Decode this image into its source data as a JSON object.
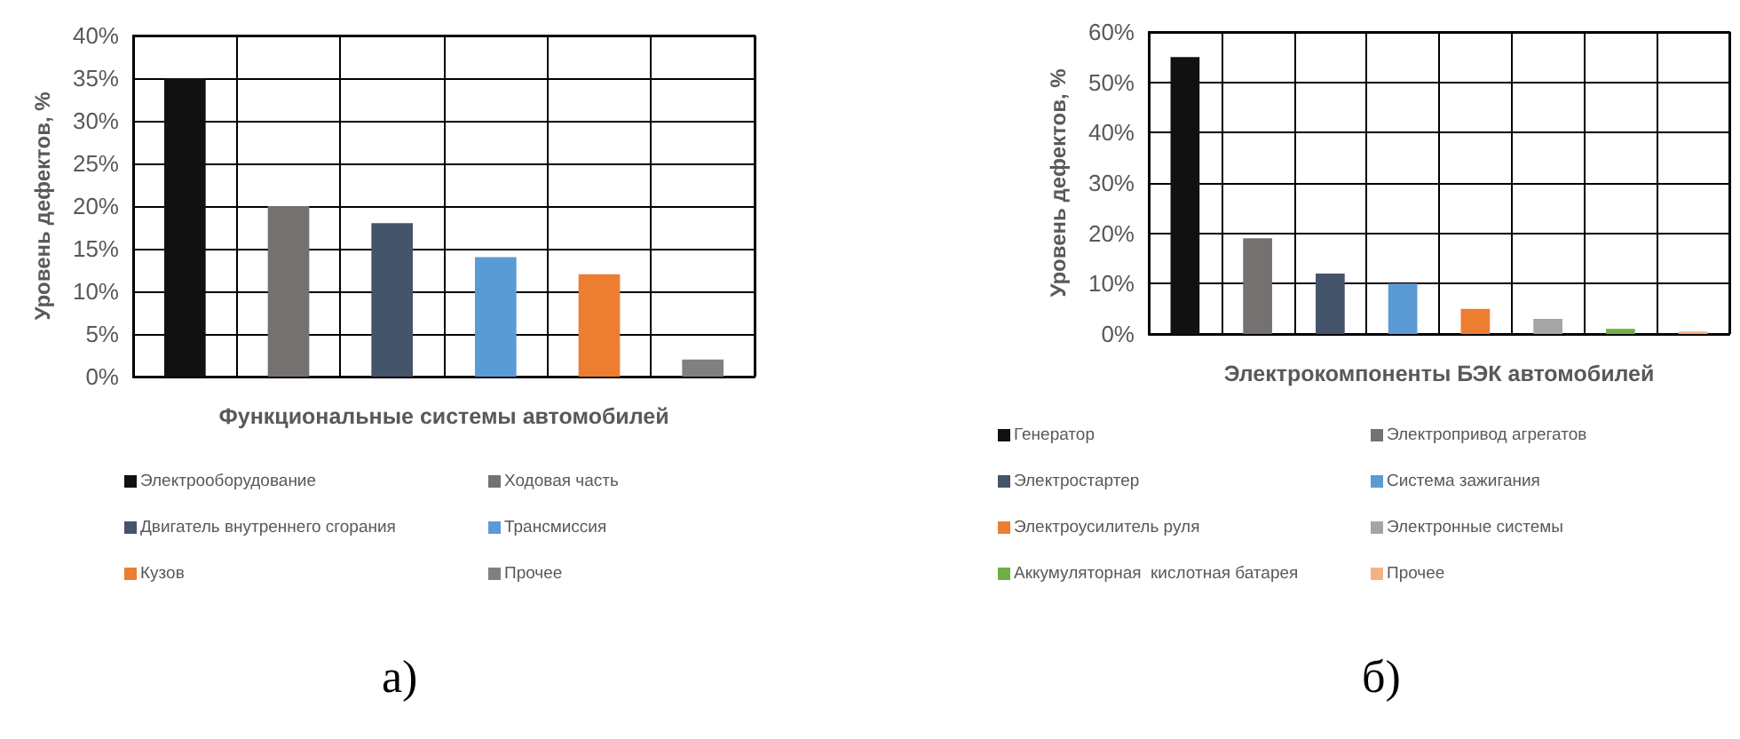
{
  "chart_data": [
    {
      "type": "bar",
      "xlabel": "Функциональные системы автомобилей",
      "ylabel": "Уровень дефектов, %",
      "categories": [
        null,
        null,
        null,
        null,
        null,
        null
      ],
      "series": [
        {
          "name": "Электрооборудование",
          "color": "#111111",
          "values": [
            35,
            null,
            null,
            null,
            null,
            null
          ]
        },
        {
          "name": "Ходовая часть",
          "color": "#767171",
          "values": [
            null,
            20,
            null,
            null,
            null,
            null
          ]
        },
        {
          "name": "Двигатель внутреннего сгорания",
          "color": "#44546a",
          "values": [
            null,
            null,
            18,
            null,
            null,
            null
          ]
        },
        {
          "name": "Трансмиссия",
          "color": "#5b9bd5",
          "values": [
            null,
            null,
            null,
            14,
            null,
            null
          ]
        },
        {
          "name": "Кузов",
          "color": "#ed7d31",
          "values": [
            null,
            null,
            null,
            null,
            12,
            null
          ]
        },
        {
          "name": "Прочее",
          "color": "#808080",
          "values": [
            null,
            null,
            null,
            null,
            null,
            2
          ]
        }
      ],
      "ylim": [
        0,
        40
      ],
      "yticks": [
        {
          "value": 0,
          "label": "0%"
        },
        {
          "value": 5,
          "label": "5%"
        },
        {
          "value": 10,
          "label": "10%"
        },
        {
          "value": 15,
          "label": "15%"
        },
        {
          "value": 20,
          "label": "20%"
        },
        {
          "value": 25,
          "label": "25%"
        },
        {
          "value": 30,
          "label": "30%"
        },
        {
          "value": 35,
          "label": "35%"
        },
        {
          "value": 40,
          "label": "40%"
        }
      ],
      "grid": true,
      "legend": "bottom",
      "annotations": [
        "а)"
      ]
    },
    {
      "type": "bar",
      "xlabel": "Электрокомпоненты БЭК автомобилей",
      "ylabel": "Уровень дефектов, %",
      "categories": [
        null,
        null,
        null,
        null,
        null,
        null,
        null,
        null
      ],
      "series": [
        {
          "name": "Генератор",
          "color": "#111111",
          "values": [
            55,
            null,
            null,
            null,
            null,
            null,
            null,
            null
          ]
        },
        {
          "name": "Электропривод агрегатов",
          "color": "#767171",
          "values": [
            null,
            19,
            null,
            null,
            null,
            null,
            null,
            null
          ]
        },
        {
          "name": "Электростартер",
          "color": "#44546a",
          "values": [
            null,
            null,
            12,
            null,
            null,
            null,
            null,
            null
          ]
        },
        {
          "name": "Система зажигания",
          "color": "#5b9bd5",
          "values": [
            null,
            null,
            null,
            10,
            null,
            null,
            null,
            null
          ]
        },
        {
          "name": "Электроусилитель руля",
          "color": "#ed7d31",
          "values": [
            null,
            null,
            null,
            null,
            5,
            null,
            null,
            null
          ]
        },
        {
          "name": "Электронные системы",
          "color": "#a5a5a5",
          "values": [
            null,
            null,
            null,
            null,
            null,
            3,
            null,
            null
          ]
        },
        {
          "name": "Аккумуляторная  кислотная батарея",
          "color": "#70ad47",
          "values": [
            null,
            null,
            null,
            null,
            null,
            null,
            1,
            null
          ]
        },
        {
          "name": "Прочее",
          "color": "#f4b183",
          "values": [
            null,
            null,
            null,
            null,
            null,
            null,
            null,
            0.5
          ]
        }
      ],
      "ylim": [
        0,
        60
      ],
      "yticks": [
        {
          "value": 0,
          "label": "0%"
        },
        {
          "value": 10,
          "label": "10%"
        },
        {
          "value": 20,
          "label": "20%"
        },
        {
          "value": 30,
          "label": "30%"
        },
        {
          "value": 40,
          "label": "40%"
        },
        {
          "value": 50,
          "label": "50%"
        },
        {
          "value": 60,
          "label": "60%"
        }
      ],
      "grid": true,
      "legend": "bottom",
      "annotations": [
        "б)"
      ]
    }
  ]
}
